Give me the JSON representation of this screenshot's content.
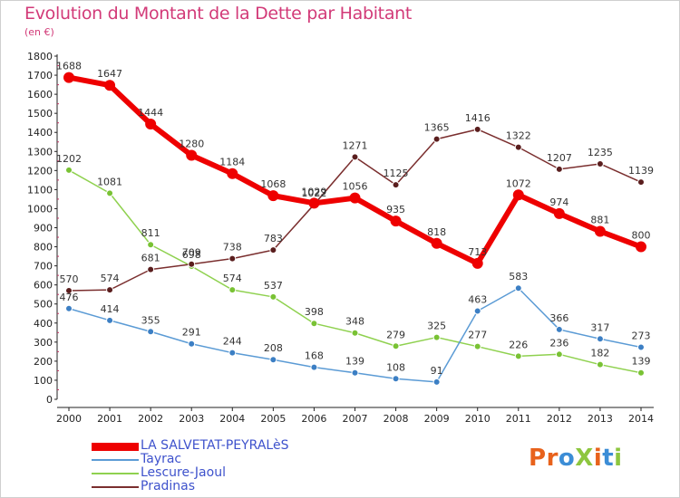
{
  "title": "Evolution du Montant de la Dette par Habitant",
  "subtitle": "(en €)",
  "brand": {
    "text": "ProXiti",
    "letters": [
      "P",
      "r",
      "o",
      "X",
      "i",
      "t",
      "i"
    ],
    "colors": [
      "#e8621c",
      "#e8621c",
      "#3c8dd6",
      "#8dc63f",
      "#e8621c",
      "#3c8dd6",
      "#8dc63f"
    ]
  },
  "chart_data": {
    "type": "line",
    "title": "Evolution du Montant de la Dette par Habitant",
    "ylabel": "(en €)",
    "xlabel": "",
    "x": [
      "2000",
      "2001",
      "2002",
      "2003",
      "2004",
      "2005",
      "2006",
      "2007",
      "2008",
      "2009",
      "2010",
      "2011",
      "2012",
      "2013",
      "2014"
    ],
    "ylim": [
      0,
      1800
    ],
    "yticks": [
      "0",
      "100",
      "200",
      "300",
      "400",
      "500",
      "600",
      "700",
      "800",
      "900",
      "1000",
      "1100",
      "1200",
      "1300",
      "1400",
      "1500",
      "1600",
      "1700",
      "1800"
    ],
    "grid": false,
    "legend_position": "bottom-left",
    "series": [
      {
        "name": "LA SALVETAT-PEYRALèS",
        "color": "#ee0000",
        "values": [
          1688,
          1647,
          1444,
          1280,
          1184,
          1068,
          1029,
          1056,
          935,
          818,
          713,
          1072,
          974,
          881,
          800
        ]
      },
      {
        "name": "Tayrac",
        "color": "#5b9bd5",
        "values": [
          476,
          414,
          355,
          291,
          244,
          208,
          168,
          139,
          108,
          91,
          463,
          583,
          366,
          317,
          273
        ]
      },
      {
        "name": "Lescure-Jaoul",
        "color": "#8fd14f",
        "values": [
          1202,
          1081,
          811,
          698,
          574,
          537,
          398,
          348,
          279,
          325,
          277,
          226,
          236,
          182,
          139
        ]
      },
      {
        "name": "Pradinas",
        "color": "#7a2e2e",
        "values": [
          570,
          574,
          681,
          709,
          738,
          783,
          1022,
          1271,
          1125,
          1365,
          1416,
          1322,
          1207,
          1235,
          1139
        ]
      }
    ]
  }
}
